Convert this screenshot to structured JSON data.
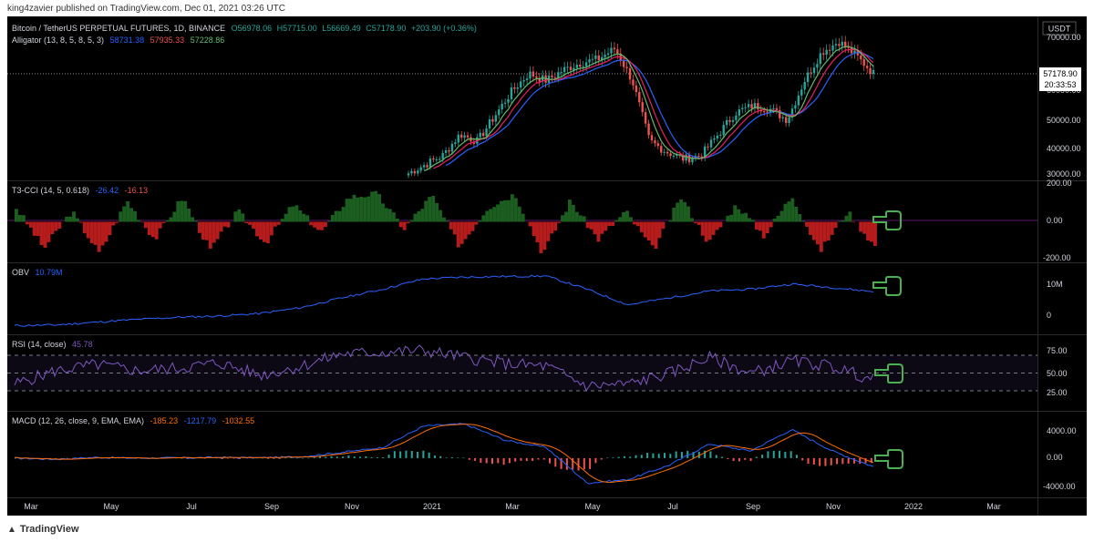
{
  "header": {
    "text": "king4zavier published on TradingView.com, Dec 01, 2021 03:26 UTC"
  },
  "footer": {
    "brand": "TradingView"
  },
  "colors": {
    "bg": "#000000",
    "grid": "#1a1a1a",
    "text": "#d1d4dc",
    "up": "#26a69a",
    "down": "#ef5350",
    "jaw": "#2962ff",
    "teeth": "#e91e63",
    "lips": "#66bb6a",
    "cci_pos": "#1b5e20",
    "cci_neg": "#b71c1c",
    "obv": "#2962ff",
    "rsi": "#7e57c2",
    "macd": "#2962ff",
    "signal": "#ff6d00",
    "hand": "#4caf50"
  },
  "price_pane": {
    "line1": {
      "title": "Bitcoin / TetherUS PERPETUAL FUTURES, 1D, BINANCE",
      "o": "O56978.06",
      "h": "H57715.00",
      "l": "L56669.49",
      "c": "C57178.90",
      "chg": "+203.90 (+0.36%)"
    },
    "line2": {
      "title": "Alligator (13, 8, 5, 8, 5, 3)",
      "v1": "58731.38",
      "v2": "57935.33",
      "v3": "57228.86"
    },
    "currency": "USDT",
    "axis_ticks": [
      "70000.00",
      "60000.00",
      "50000.00",
      "40000.00",
      "30000.00"
    ],
    "last_price": "57178.90",
    "countdown": "20:33:53"
  },
  "cci_pane": {
    "title": "T3-CCI (14, 5, 0.618)",
    "v1": "-26.42",
    "v2": "-16.13",
    "axis_ticks": [
      "200.00",
      "0.00",
      "-200.00"
    ]
  },
  "obv_pane": {
    "title": "OBV",
    "value": "10.79M",
    "axis_ticks": [
      "10M",
      "0"
    ]
  },
  "rsi_pane": {
    "title": "RSI (14, close)",
    "value": "45.78",
    "axis_ticks": [
      "75.00",
      "50.00",
      "25.00"
    ]
  },
  "macd_pane": {
    "title": "MACD (12, 26, close, 9, EMA, EMA)",
    "v1": "-185.23",
    "v2": "-1217.79",
    "v3": "-1032.55",
    "axis_ticks": [
      "4000.00",
      "0.00",
      "-4000.00"
    ]
  },
  "time_axis": [
    "Mar",
    "May",
    "Jul",
    "Sep",
    "Nov",
    "2021",
    "Mar",
    "May",
    "Jul",
    "Sep",
    "Nov",
    "2022",
    "Mar"
  ],
  "chart_data": {
    "type": "line",
    "title": "Bitcoin / TetherUS PERPETUAL FUTURES, 1D, BINANCE",
    "x": [
      "2020-03",
      "2020-04",
      "2020-05",
      "2020-06",
      "2020-07",
      "2020-08",
      "2020-09",
      "2020-10",
      "2020-11",
      "2020-12",
      "2021-01",
      "2021-02",
      "2021-03",
      "2021-04",
      "2021-05",
      "2021-06",
      "2021-07",
      "2021-08",
      "2021-09",
      "2021-10",
      "2021-11",
      "2021-12"
    ],
    "series": [
      {
        "name": "OBV",
        "values": [
          1.0,
          1.2,
          2.0,
          2.8,
          3.4,
          3.8,
          4.5,
          6.2,
          9.0,
          11.5,
          14.5,
          15.0,
          15.2,
          15.3,
          11.5,
          7.0,
          9.0,
          11.0,
          11.5,
          13.0,
          12.0,
          10.8
        ]
      },
      {
        "name": "RSI",
        "values": [
          40,
          55,
          62,
          55,
          58,
          64,
          50,
          60,
          74,
          76,
          78,
          70,
          63,
          60,
          38,
          40,
          52,
          70,
          52,
          66,
          60,
          45
        ]
      },
      {
        "name": "MACD",
        "values": [
          0,
          -150,
          100,
          0,
          30,
          100,
          50,
          200,
          800,
          1500,
          4500,
          4800,
          2500,
          1500,
          -3500,
          -3000,
          -1000,
          2000,
          1000,
          4000,
          1000,
          -1200
        ]
      }
    ],
    "candles_close": [
      29000,
      31500,
      34000,
      40000,
      38000,
      45000,
      52000,
      57000,
      55000,
      58000,
      60000,
      61000,
      64000,
      55000,
      38000,
      35000,
      33000,
      34000,
      40000,
      46000,
      48000,
      47000,
      44000,
      55000,
      63000,
      66000,
      62000,
      57000
    ],
    "ylim_price": [
      27000,
      73000
    ],
    "ylim_cci": [
      -230,
      230
    ],
    "ylim_obv": [
      -1.5,
      19
    ],
    "ylim_rsi": [
      10,
      95
    ],
    "ylim_macd": [
      -5500,
      6500
    ]
  }
}
